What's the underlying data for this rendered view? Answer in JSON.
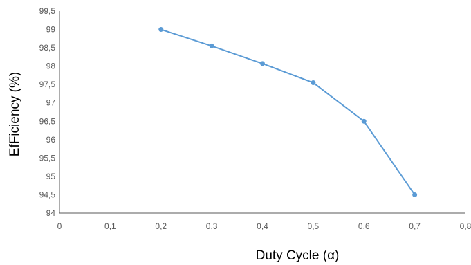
{
  "chart_data": {
    "type": "line",
    "title": "",
    "xlabel": "Duty Cycle (α)",
    "ylabel": "EfFiciency (%)",
    "xlim": [
      0,
      0.8
    ],
    "ylim": [
      94,
      99.5
    ],
    "x_ticks": [
      "0",
      "0,1",
      "0,2",
      "0,3",
      "0,4",
      "0,5",
      "0,6",
      "0,7",
      "0,8"
    ],
    "y_ticks": [
      "94",
      "94,5",
      "95",
      "95,5",
      "96",
      "96,5",
      "97",
      "97,5",
      "98",
      "98,5",
      "99",
      "99,5"
    ],
    "grid": false,
    "legend": "none",
    "series": [
      {
        "color": "#5B9BD5",
        "x": [
          0.2,
          0.3,
          0.4,
          0.5,
          0.6,
          0.7
        ],
        "y": [
          99.0,
          98.55,
          98.07,
          97.55,
          96.5,
          94.5
        ]
      }
    ]
  }
}
